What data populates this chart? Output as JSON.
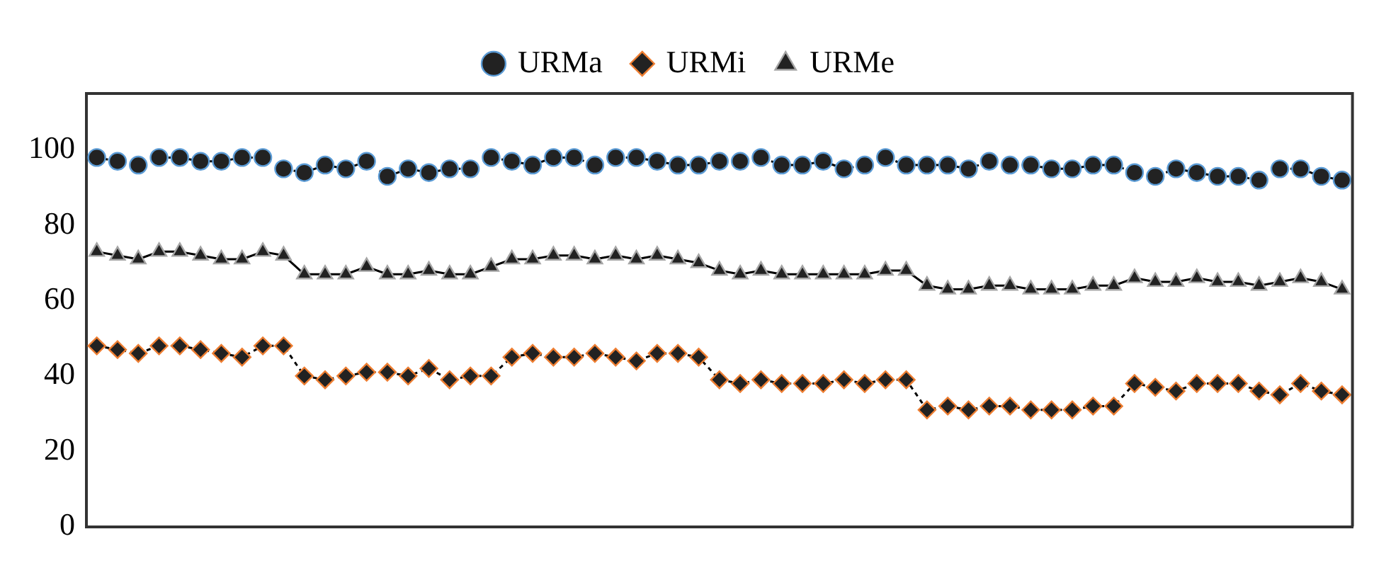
{
  "chart_data": {
    "type": "line",
    "categories": [
      null,
      null,
      null,
      null,
      null,
      null,
      null,
      null,
      null,
      null,
      null,
      null,
      null,
      null,
      null,
      null,
      null,
      null,
      null,
      null,
      null,
      null,
      null,
      null,
      null,
      null,
      null,
      null,
      null,
      null,
      null,
      null,
      null,
      null,
      null,
      null,
      null,
      null,
      null,
      null,
      null,
      null,
      null,
      null,
      null,
      null,
      null,
      null,
      null,
      null,
      null,
      null,
      null,
      null,
      null,
      null,
      null,
      null,
      null,
      null,
      null
    ],
    "series": [
      {
        "name": "URMa",
        "color": "#5b9bd5",
        "marker": "circle",
        "line_style": "dashed",
        "values": [
          98,
          97,
          96,
          98,
          98,
          97,
          97,
          98,
          98,
          95,
          94,
          96,
          95,
          97,
          93,
          95,
          94,
          95,
          95,
          98,
          97,
          96,
          98,
          98,
          96,
          98,
          98,
          97,
          96,
          96,
          97,
          97,
          98,
          96,
          96,
          97,
          95,
          96,
          98,
          96,
          96,
          96,
          95,
          97,
          96,
          96,
          95,
          95,
          96,
          96,
          94,
          93,
          95,
          94,
          93,
          93,
          92,
          95,
          95,
          93,
          92
        ]
      },
      {
        "name": "URMi",
        "color": "#ed7d31",
        "marker": "diamond",
        "line_style": "dotted",
        "values": [
          48,
          47,
          46,
          48,
          48,
          47,
          46,
          45,
          48,
          48,
          40,
          39,
          40,
          41,
          41,
          40,
          42,
          39,
          40,
          40,
          45,
          46,
          45,
          45,
          46,
          45,
          44,
          46,
          46,
          45,
          39,
          38,
          39,
          38,
          38,
          38,
          39,
          38,
          39,
          39,
          31,
          32,
          31,
          32,
          32,
          31,
          31,
          31,
          32,
          32,
          38,
          37,
          36,
          38,
          38,
          38,
          36,
          35,
          38,
          36,
          35
        ]
      },
      {
        "name": "URMe",
        "color": "#a5a5a5",
        "marker": "triangle",
        "line_style": "solid",
        "values": [
          73,
          72,
          71,
          73,
          73,
          72,
          71,
          71,
          73,
          72,
          67,
          67,
          67,
          69,
          67,
          67,
          68,
          67,
          67,
          69,
          71,
          71,
          72,
          72,
          71,
          72,
          71,
          72,
          71,
          70,
          68,
          67,
          68,
          67,
          67,
          67,
          67,
          67,
          68,
          68,
          64,
          63,
          63,
          64,
          64,
          63,
          63,
          63,
          64,
          64,
          66,
          65,
          65,
          66,
          65,
          65,
          64,
          65,
          66,
          65,
          63
        ]
      }
    ],
    "ylim": [
      0,
      115
    ],
    "yticks": [
      0,
      20,
      40,
      60,
      80,
      100
    ],
    "grid": false,
    "legend": "top"
  }
}
